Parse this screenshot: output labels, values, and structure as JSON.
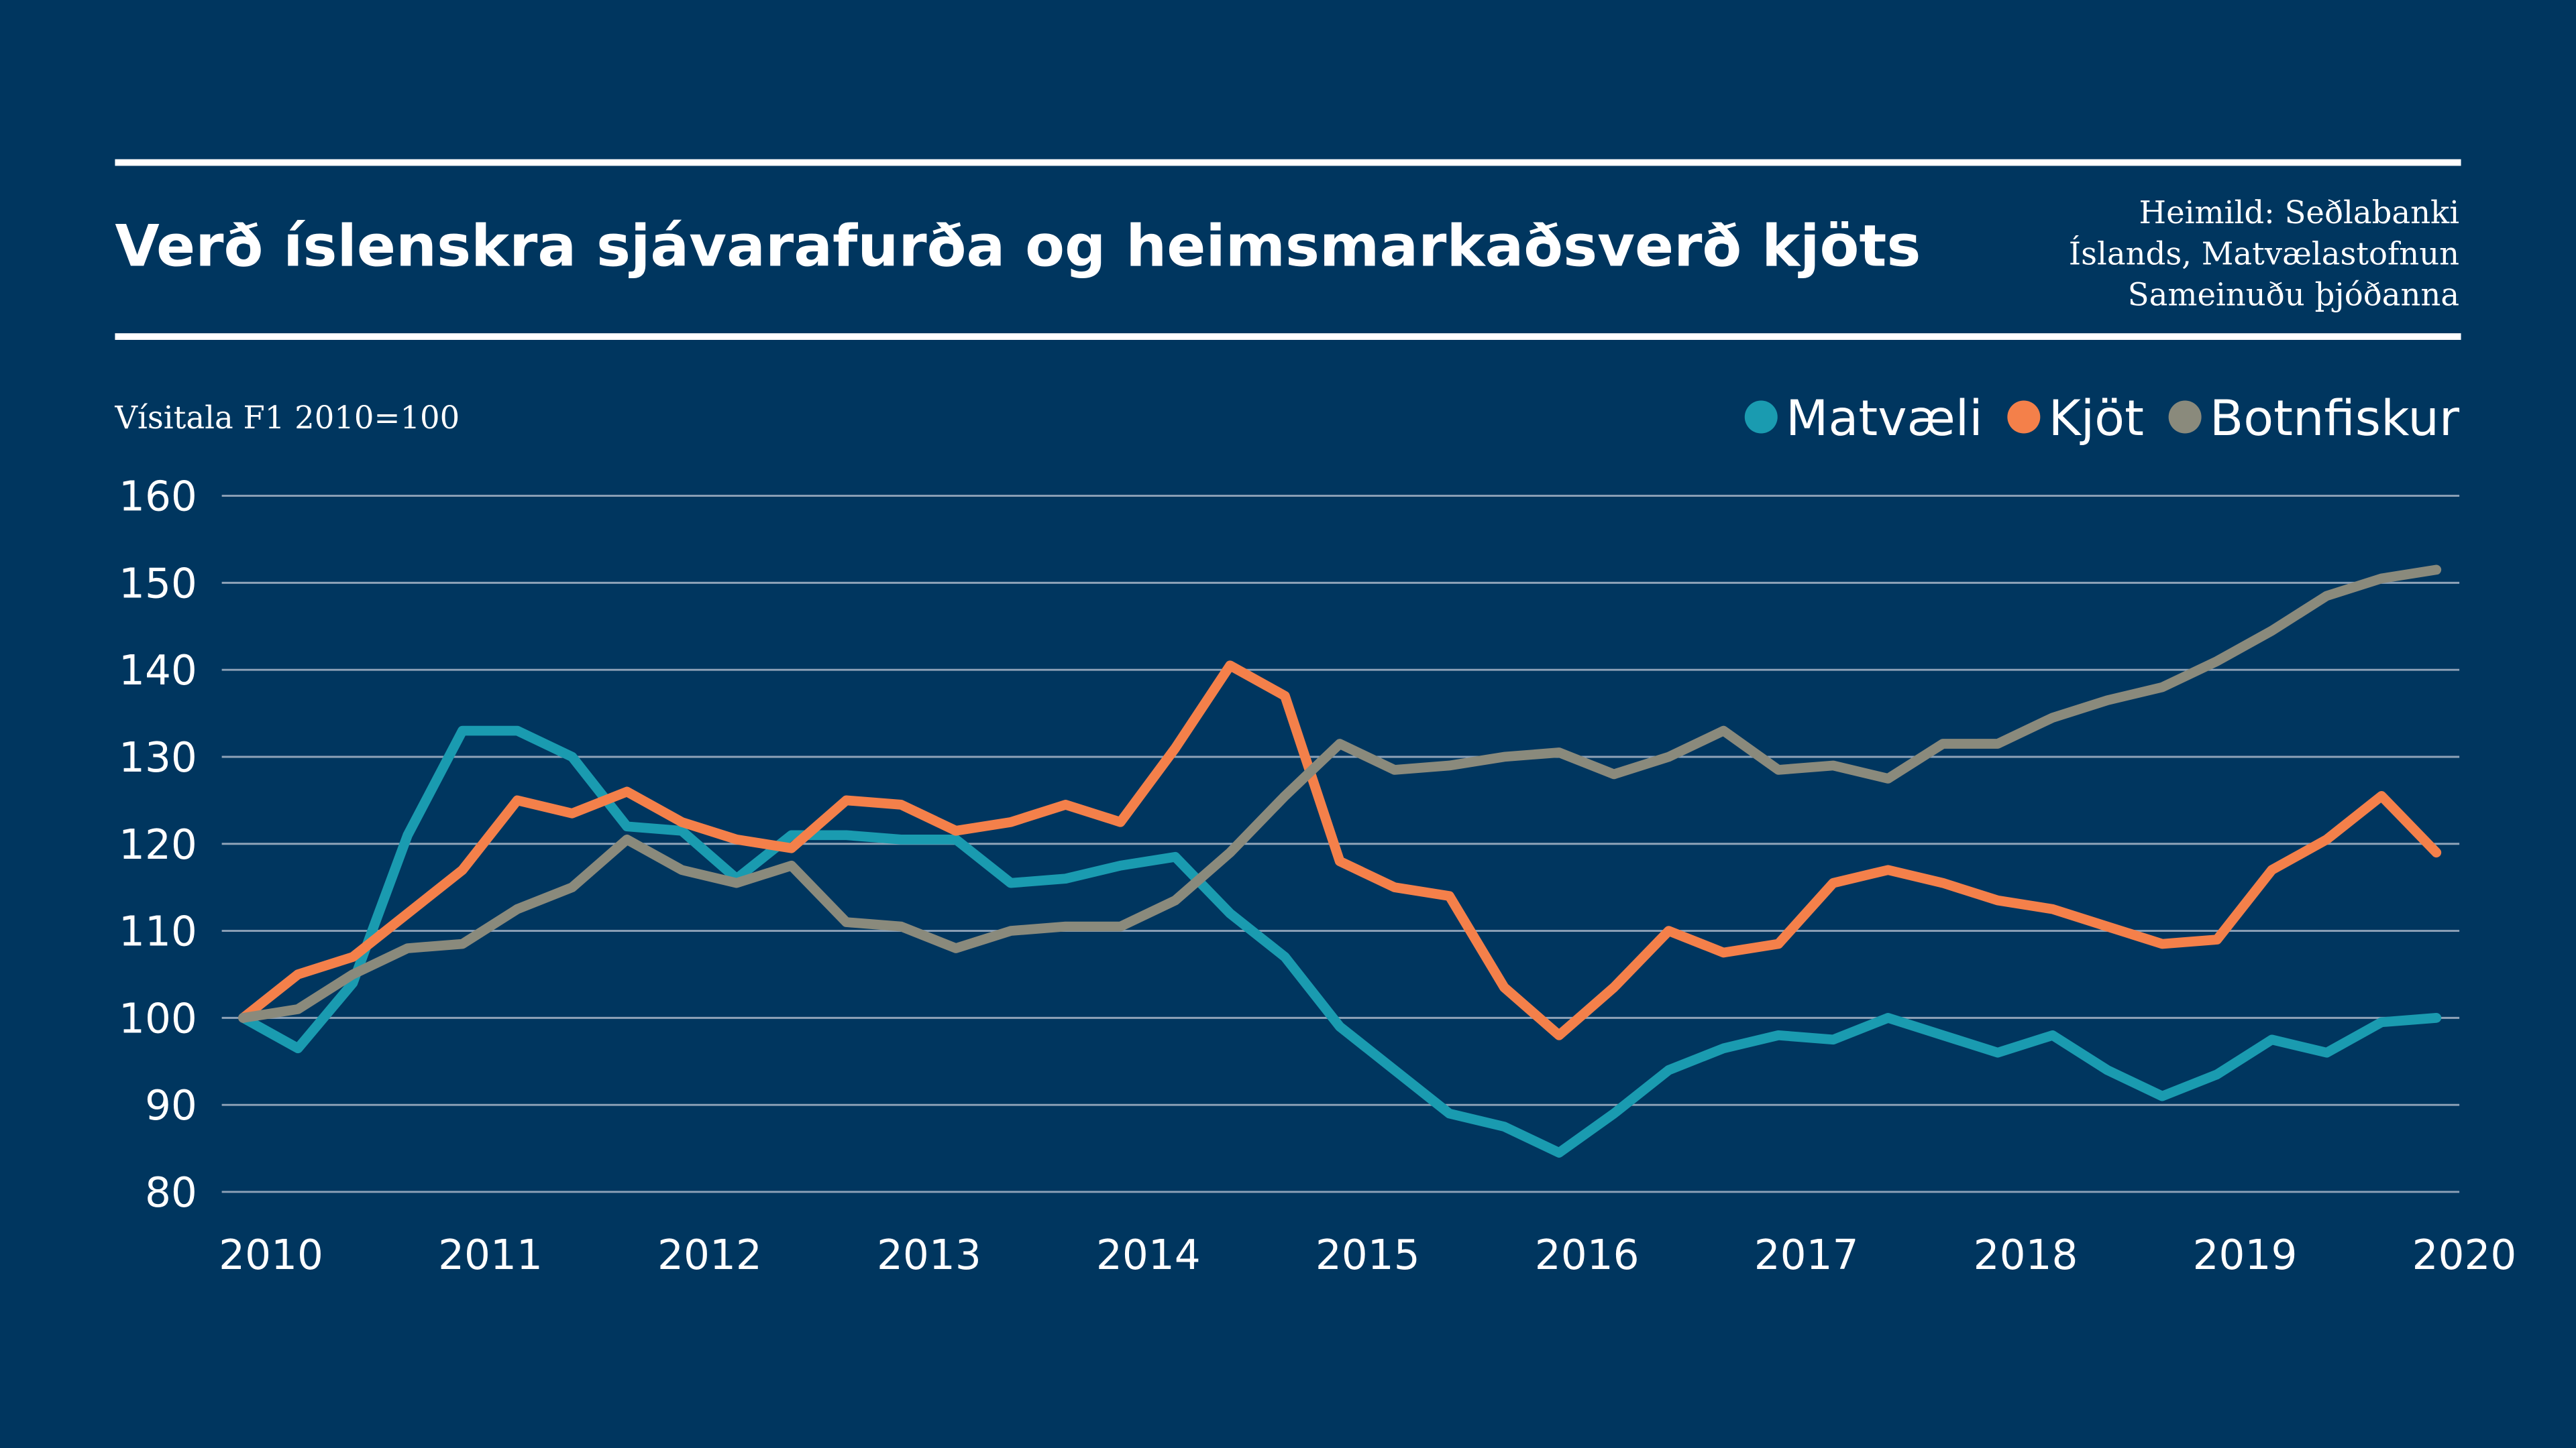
{
  "chart_data": {
    "type": "line",
    "title": "Verð íslenskra sjávarafurða og heimsmarkaðsverð kjöts",
    "source": [
      "Heimild: Seðlabanki",
      "Íslands, Matvælastofnun",
      "Sameinuðu þjóðanna"
    ],
    "y_label": "Vísitala F1 2010=100",
    "x": [
      2010,
      2010.25,
      2010.5,
      2010.75,
      2011,
      2011.25,
      2011.5,
      2011.75,
      2012,
      2012.25,
      2012.5,
      2012.75,
      2013,
      2013.25,
      2013.5,
      2013.75,
      2014,
      2014.25,
      2014.5,
      2014.75,
      2015,
      2015.25,
      2015.5,
      2015.75,
      2016,
      2016.25,
      2016.5,
      2016.75,
      2017,
      2017.25,
      2017.5,
      2017.75,
      2018,
      2018.25,
      2018.5,
      2018.75,
      2019,
      2019.25,
      2019.5,
      2019.75,
      2020
    ],
    "series": [
      {
        "name": "Matvæli",
        "color": "#1a9bb0",
        "values": [
          100,
          96.5,
          104,
          121,
          133,
          133,
          130,
          122,
          121.5,
          116,
          121,
          121,
          120.5,
          120.5,
          115.5,
          116,
          117.5,
          118.5,
          112,
          107,
          99,
          94,
          89,
          87.5,
          84.5,
          89,
          94,
          96.5,
          98,
          97.5,
          100,
          98,
          96,
          98,
          94,
          91,
          93.5,
          97.5,
          96,
          99.5,
          100
        ]
      },
      {
        "name": "Kjöt",
        "color": "#f4804a",
        "values": [
          100,
          105,
          107,
          112,
          117,
          125,
          123.5,
          126,
          122.5,
          120.5,
          119.5,
          125,
          124.5,
          121.5,
          122.5,
          124.5,
          122.5,
          131,
          140.5,
          137,
          118,
          115,
          114,
          103.5,
          98,
          103.5,
          110,
          107.5,
          108.5,
          115.5,
          117,
          115.5,
          113.5,
          112.5,
          110.5,
          108.5,
          109,
          117,
          120.5,
          125.5,
          119
        ]
      },
      {
        "name": "Botnfiskur",
        "color": "#8a8a7c",
        "values": [
          100,
          101,
          105,
          108,
          108.5,
          112.5,
          115,
          120.5,
          117,
          115.5,
          117.5,
          111,
          110.5,
          108,
          110,
          110.5,
          110.5,
          113.5,
          119,
          125.5,
          131.5,
          128.5,
          129,
          130,
          130.5,
          128,
          130,
          133,
          128.5,
          129,
          127.5,
          131.5,
          131.5,
          134.5,
          136.5,
          138,
          141,
          144.5,
          148.5,
          150.5,
          151.5
        ]
      }
    ],
    "xlim": [
      2010,
      2020
    ],
    "xticks": [
      2010,
      2011,
      2012,
      2013,
      2014,
      2015,
      2016,
      2017,
      2018,
      2019,
      2020
    ],
    "ylim": [
      80,
      160
    ],
    "yticks": [
      80,
      90,
      100,
      110,
      120,
      130,
      140,
      150,
      160
    ],
    "grid": true,
    "legend": "top-right"
  }
}
